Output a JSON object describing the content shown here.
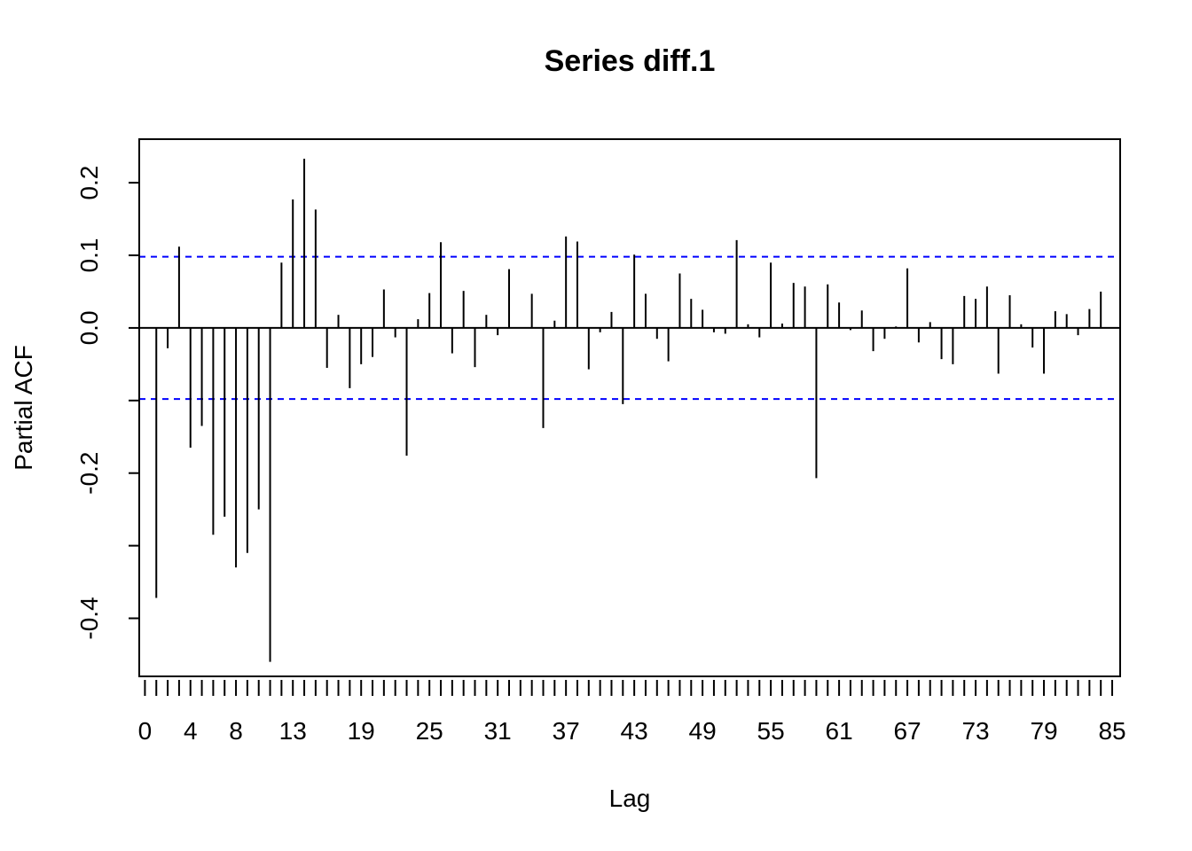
{
  "chart_data": {
    "type": "bar",
    "subtype": "partial-acf-spikes",
    "title": "Series  diff.1",
    "xlabel": "Lag",
    "ylabel": "Partial ACF",
    "xlim": [
      -0.5,
      85.7
    ],
    "ylim": [
      -0.48,
      0.26
    ],
    "x_ticks": [
      0,
      4,
      8,
      13,
      19,
      25,
      31,
      37,
      43,
      49,
      55,
      61,
      67,
      73,
      79,
      85
    ],
    "y_ticks": [
      -0.4,
      -0.2,
      0.0,
      0.1,
      0.2
    ],
    "y_tick_labels": [
      "-0.4",
      "-0.2",
      "0.0",
      "0.1",
      "0.2"
    ],
    "x_ticks_minor_from": 0,
    "x_ticks_minor_to": 85,
    "confidence_bound": 0.098,
    "confidence_color": "#0000ff",
    "lags": [
      1,
      2,
      3,
      4,
      5,
      6,
      7,
      8,
      9,
      10,
      11,
      12,
      13,
      14,
      15,
      16,
      17,
      18,
      19,
      20,
      21,
      22,
      23,
      24,
      25,
      26,
      27,
      28,
      29,
      30,
      31,
      32,
      33,
      34,
      35,
      36,
      37,
      38,
      39,
      40,
      41,
      42,
      43,
      44,
      45,
      46,
      47,
      48,
      49,
      50,
      51,
      52,
      53,
      54,
      55,
      56,
      57,
      58,
      59,
      60,
      61,
      62,
      63,
      64,
      65,
      66,
      67,
      68,
      69,
      70,
      71,
      72,
      73,
      74,
      75,
      76,
      77,
      78,
      79,
      80,
      81,
      82,
      83,
      84
    ],
    "values": [
      -0.372,
      -0.028,
      0.112,
      -0.165,
      -0.135,
      -0.285,
      -0.26,
      -0.33,
      -0.31,
      -0.25,
      -0.46,
      0.09,
      0.177,
      0.233,
      0.163,
      -0.055,
      0.018,
      -0.083,
      -0.05,
      -0.04,
      0.053,
      -0.013,
      -0.176,
      0.012,
      0.048,
      0.118,
      -0.035,
      0.051,
      -0.054,
      0.018,
      -0.01,
      0.081,
      0.0,
      0.047,
      -0.138,
      0.01,
      0.126,
      0.119,
      -0.057,
      -0.006,
      0.022,
      -0.105,
      0.101,
      0.047,
      -0.015,
      -0.046,
      0.075,
      0.04,
      0.025,
      -0.006,
      -0.008,
      0.121,
      0.005,
      -0.013,
      0.09,
      0.006,
      0.062,
      0.057,
      -0.207,
      0.06,
      0.035,
      -0.003,
      0.024,
      -0.032,
      -0.015,
      0.002,
      0.082,
      -0.02,
      0.008,
      -0.043,
      -0.05,
      0.044,
      0.04,
      0.057,
      -0.063,
      0.045,
      0.005,
      -0.027,
      -0.063,
      0.023,
      0.019,
      -0.01,
      0.026,
      0.05
    ]
  }
}
